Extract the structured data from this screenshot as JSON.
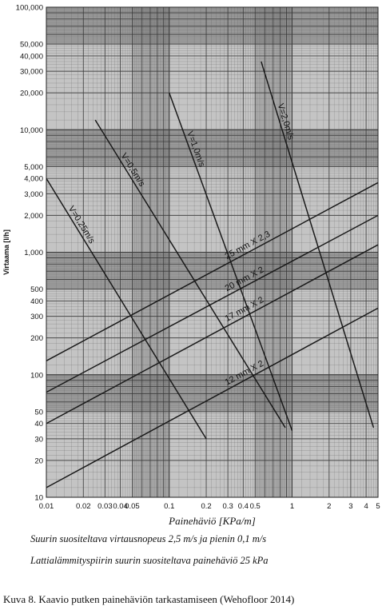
{
  "chart_data": {
    "type": "line",
    "title": "",
    "xlabel": "Painehäviö [KPa/m]",
    "ylabel": "Virtaama [l/h]",
    "xscale": "log",
    "yscale": "log",
    "xlim": [
      0.01,
      5
    ],
    "ylim": [
      10,
      100000
    ],
    "grid": true,
    "x_ticks": [
      {
        "v": 0.01,
        "label": "0.01"
      },
      {
        "v": 0.02,
        "label": "0.02"
      },
      {
        "v": 0.03,
        "label": "0.03"
      },
      {
        "v": 0.04,
        "label": "0.04"
      },
      {
        "v": 0.05,
        "label": "0.05"
      },
      {
        "v": 0.1,
        "label": "0.1"
      },
      {
        "v": 0.2,
        "label": "0.2"
      },
      {
        "v": 0.3,
        "label": "0.3"
      },
      {
        "v": 0.4,
        "label": "0.4"
      },
      {
        "v": 0.5,
        "label": "0.5"
      },
      {
        "v": 1,
        "label": "1"
      },
      {
        "v": 2,
        "label": "2"
      },
      {
        "v": 3,
        "label": "3"
      },
      {
        "v": 4,
        "label": "4"
      },
      {
        "v": 5,
        "label": "5"
      }
    ],
    "y_ticks": [
      {
        "v": 10,
        "label": "10"
      },
      {
        "v": 20,
        "label": "20"
      },
      {
        "v": 30,
        "label": "30"
      },
      {
        "v": 40,
        "label": "40"
      },
      {
        "v": 50,
        "label": "50"
      },
      {
        "v": 100,
        "label": "100"
      },
      {
        "v": 200,
        "label": "200"
      },
      {
        "v": 300,
        "label": "300"
      },
      {
        "v": 400,
        "label": "400"
      },
      {
        "v": 500,
        "label": "500"
      },
      {
        "v": 1000,
        "label": "1,000"
      },
      {
        "v": 2000,
        "label": "2,000"
      },
      {
        "v": 3000,
        "label": "3,000"
      },
      {
        "v": 4000,
        "label": "4,000"
      },
      {
        "v": 5000,
        "label": "5,000"
      },
      {
        "v": 10000,
        "label": "10,000"
      },
      {
        "v": 20000,
        "label": "20,000"
      },
      {
        "v": 30000,
        "label": "30,000"
      },
      {
        "v": 40000,
        "label": "40,000"
      },
      {
        "v": 50000,
        "label": "50,000"
      },
      {
        "v": 100000,
        "label": "100,000"
      }
    ],
    "series": [
      {
        "name": "12 mm X 2",
        "kind": "pipe",
        "points": [
          [
            0.01,
            12
          ],
          [
            5,
            350
          ]
        ]
      },
      {
        "name": "17 mm X 2",
        "kind": "pipe",
        "points": [
          [
            0.01,
            40
          ],
          [
            5,
            1150
          ]
        ]
      },
      {
        "name": "20 mm X 2",
        "kind": "pipe",
        "points": [
          [
            0.01,
            72
          ],
          [
            5,
            2000
          ]
        ]
      },
      {
        "name": "25 mm X 2,3",
        "kind": "pipe",
        "points": [
          [
            0.01,
            130
          ],
          [
            5,
            3700
          ]
        ]
      },
      {
        "name": "V=0,25m/s",
        "kind": "velocity",
        "points": [
          [
            0.01,
            4000
          ],
          [
            0.2,
            30
          ]
        ]
      },
      {
        "name": "V=0,5m/s",
        "kind": "velocity",
        "points": [
          [
            0.025,
            12000
          ],
          [
            0.88,
            37
          ]
        ]
      },
      {
        "name": "V=1,0m/s",
        "kind": "velocity",
        "points": [
          [
            0.1,
            20000
          ],
          [
            1,
            35
          ]
        ]
      },
      {
        "name": "V=2,0m/s",
        "kind": "velocity",
        "points": [
          [
            0.56,
            36000
          ],
          [
            4.6,
            37
          ]
        ]
      }
    ]
  },
  "notes": [
    "Suurin suositeltava virtausnopeus 2,5 m/s ja pienin 0,1 m/s",
    "Lattialämmityspiirin suurin suositeltava painehäviö 25 kPa"
  ],
  "caption": "Kuva 8. Kaavio putken painehäviön tarkastamiseen (Wehofloor 2014)",
  "colors": {
    "line": "#1a1a1a",
    "band_dark": "#7e7e7e",
    "band_light": "#c4c4c4",
    "grid_dark": "#3a3a3a",
    "grid_light": "#555555"
  }
}
